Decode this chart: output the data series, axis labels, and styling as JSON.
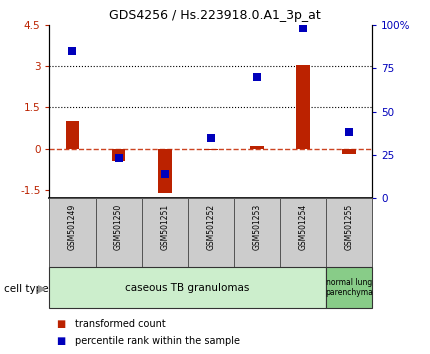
{
  "title": "GDS4256 / Hs.223918.0.A1_3p_at",
  "samples": [
    "GSM501249",
    "GSM501250",
    "GSM501251",
    "GSM501252",
    "GSM501253",
    "GSM501254",
    "GSM501255"
  ],
  "red_bars": [
    1.0,
    -0.45,
    -1.62,
    -0.05,
    0.08,
    3.05,
    -0.18
  ],
  "blue_pct": [
    85,
    23,
    14,
    35,
    70,
    98,
    38
  ],
  "left_ylim": [
    -1.8,
    4.5
  ],
  "right_ylim": [
    0,
    100
  ],
  "left_yticks": [
    -1.5,
    0,
    1.5,
    3,
    4.5
  ],
  "right_yticks": [
    0,
    25,
    50,
    75,
    100
  ],
  "left_ytick_labels": [
    "-1.5",
    "0",
    "1.5",
    "3",
    "4.5"
  ],
  "right_ytick_labels": [
    "0",
    "25",
    "50",
    "75",
    "100%"
  ],
  "hlines": [
    3.0,
    1.5
  ],
  "red_color": "#bb2200",
  "blue_color": "#0000bb",
  "dashed_line_color": "#cc4422",
  "cell_type1_label": "caseous TB granulomas",
  "cell_type1_color": "#cceecc",
  "cell_type1_count": 6,
  "cell_type2_label": "normal lung\nparenchyma",
  "cell_type2_color": "#88cc88",
  "cell_type_label": "cell type",
  "legend_red": "transformed count",
  "legend_blue": "percentile rank within the sample",
  "bar_width": 0.3,
  "square_size": 40,
  "gray_box_color": "#cccccc"
}
